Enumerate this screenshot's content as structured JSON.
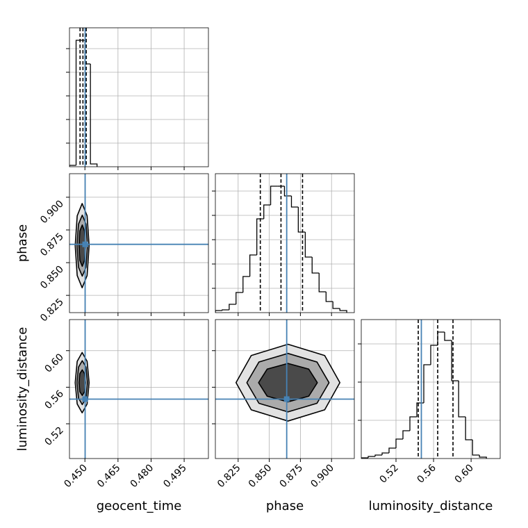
{
  "chart_data": [
    {
      "type": "histogram",
      "color": "#000000",
      "truth_color": "#4682b4",
      "grid": true,
      "xlim": [
        0.443,
        0.506
      ],
      "xticks": [
        0.45,
        0.465,
        0.48,
        0.495
      ],
      "xticklabels": false,
      "ylim": [
        0,
        100
      ],
      "yticks": [
        17,
        34,
        51,
        68,
        85
      ],
      "yticklabels": false,
      "bins": [
        0.443,
        0.446,
        0.45,
        0.4525,
        0.4555
      ],
      "counts": [
        1,
        91,
        74,
        2
      ],
      "quantiles": [
        0.4478,
        0.4491,
        0.4506
      ],
      "truth": 0.4501
    },
    {
      "type": "contour",
      "color": "#000000",
      "truth_color": "#4682b4",
      "grid": true,
      "fills": [
        "#e2e2e2",
        "#ababab",
        "#4a4a4a"
      ],
      "ylabel": "phase",
      "xlim": [
        0.443,
        0.506
      ],
      "xticks": [
        0.45,
        0.465,
        0.48,
        0.495
      ],
      "xticklabels": false,
      "ylim": [
        0.8118,
        0.918
      ],
      "yticks": [
        {
          "value": 0.825,
          "label": "0.825"
        },
        {
          "value": 0.85,
          "label": "0.850"
        },
        {
          "value": 0.875,
          "label": "0.875"
        },
        {
          "value": 0.9,
          "label": "0.900"
        }
      ],
      "yticklabels": true,
      "contours": [
        {
          "x": [
            0.4519,
            0.451,
            0.44875,
            0.4465,
            0.4456,
            0.4465,
            0.44875,
            0.451
          ],
          "y": [
            0.863,
            0.8858,
            0.8952,
            0.8858,
            0.863,
            0.8402,
            0.8308,
            0.8402
          ]
        },
        {
          "x": [
            0.4512,
            0.4505,
            0.4488,
            0.4471,
            0.4464,
            0.4471,
            0.4488,
            0.4505
          ],
          "y": [
            0.863,
            0.8795,
            0.8863,
            0.8795,
            0.863,
            0.8465,
            0.8397,
            0.8465
          ]
        },
        {
          "x": [
            0.4503,
            0.4498,
            0.4488,
            0.4477,
            0.4473,
            0.4477,
            0.4488,
            0.4498
          ],
          "y": [
            0.863,
            0.8742,
            0.8788,
            0.8742,
            0.863,
            0.8518,
            0.8472,
            0.8518
          ]
        }
      ],
      "truths": [
        0.4501,
        0.864
      ]
    },
    {
      "type": "histogram",
      "color": "#000000",
      "truth_color": "#4682b4",
      "grid": true,
      "xlim": [
        0.8067,
        0.9183
      ],
      "xticks": [
        0.825,
        0.85,
        0.875,
        0.9
      ],
      "xticklabels": false,
      "ylim": [
        0,
        100
      ],
      "yticks": [
        17.5,
        35,
        52.5,
        70,
        87.5
      ],
      "yticklabels": false,
      "bins": [
        0.8067,
        0.8122,
        0.8178,
        0.8233,
        0.8289,
        0.8344,
        0.84,
        0.8456,
        0.8511,
        0.8567,
        0.8622,
        0.8678,
        0.8733,
        0.8789,
        0.8844,
        0.89,
        0.8956,
        0.9011,
        0.9067,
        0.9122
      ],
      "counts": [
        1.5,
        2,
        6,
        14.5,
        26,
        41.5,
        67.5,
        77.5,
        91,
        91,
        84,
        76,
        58,
        40,
        28.5,
        15,
        8,
        3,
        1.5
      ],
      "quantiles": [
        0.8428,
        0.8594,
        0.8767
      ],
      "truth": 0.864
    },
    {
      "type": "contour",
      "color": "#000000",
      "truth_color": "#4682b4",
      "grid": true,
      "fills": [
        "#e2e2e2",
        "#ababab",
        "#4a4a4a"
      ],
      "xlabel": "geocent_time",
      "ylabel": "luminosity_distance",
      "xlim": [
        0.443,
        0.506
      ],
      "xticks": [
        {
          "value": 0.45,
          "label": "0.450"
        },
        0.465,
        {
          "value": 0.48,
          "label": "0.480"
        },
        0.495
      ],
      "xticklabels": true,
      "ylim": [
        0.482,
        0.634
      ],
      "yticks": [
        0.52,
        0.56,
        {
          "value": 0.6,
          "label": "0.60"
        }
      ],
      "yticklabels": true,
      "contours": [
        {
          "x": [
            0.4519,
            0.451,
            0.44875,
            0.4465,
            0.4456,
            0.4465,
            0.44875,
            0.451
          ],
          "y": [
            0.565,
            0.5883,
            0.598,
            0.5883,
            0.565,
            0.5417,
            0.532,
            0.5417
          ]
        },
        {
          "x": [
            0.4512,
            0.4505,
            0.4488,
            0.4471,
            0.4464,
            0.4471,
            0.4488,
            0.4505
          ],
          "y": [
            0.565,
            0.582,
            0.589,
            0.582,
            0.565,
            0.548,
            0.541,
            0.548
          ]
        },
        {
          "x": [
            0.4503,
            0.4498,
            0.4488,
            0.4477,
            0.4473,
            0.4477,
            0.4488,
            0.4498
          ],
          "y": [
            0.565,
            0.5749,
            0.579,
            0.5749,
            0.565,
            0.5551,
            0.551,
            0.5551
          ]
        }
      ],
      "truths": [
        0.4501,
        0.547
      ]
    },
    {
      "type": "contour",
      "color": "#000000",
      "truth_color": "#4682b4",
      "grid": true,
      "fills": [
        "#e2e2e2",
        "#ababab",
        "#4a4a4a"
      ],
      "xlabel": "phase",
      "xlim": [
        0.8067,
        0.9183
      ],
      "xticks": [
        0.825,
        {
          "value": 0.85,
          "label": "0.850"
        },
        0.875,
        {
          "value": 0.9,
          "label": "0.900"
        }
      ],
      "xticklabels": true,
      "ylim": [
        0.482,
        0.634
      ],
      "yticks": [
        0.52,
        0.56,
        0.6
      ],
      "yticklabels": false,
      "contours": [
        {
          "x": [
            0.9067,
            0.8945,
            0.865,
            0.8355,
            0.8233,
            0.8355,
            0.865,
            0.8945
          ],
          "y": [
            0.565,
            0.5947,
            0.607,
            0.5947,
            0.565,
            0.5353,
            0.523,
            0.5353
          ]
        },
        {
          "x": [
            0.898,
            0.8883,
            0.865,
            0.8417,
            0.832,
            0.8417,
            0.865,
            0.8883
          ],
          "y": [
            0.565,
            0.5876,
            0.597,
            0.5876,
            0.565,
            0.5424,
            0.533,
            0.5424
          ]
        },
        {
          "x": [
            0.8886,
            0.8817,
            0.865,
            0.8483,
            0.8414,
            0.8483,
            0.865,
            0.8817
          ],
          "y": [
            0.565,
            0.5798,
            0.586,
            0.5798,
            0.565,
            0.5502,
            0.544,
            0.5502
          ]
        }
      ],
      "truths": [
        0.864,
        0.547
      ]
    },
    {
      "type": "histogram",
      "color": "#000000",
      "truth_color": "#4682b4",
      "grid": true,
      "xlabel": "luminosity_distance",
      "xlim": [
        0.483,
        0.631
      ],
      "xticks": [
        0.52,
        0.56,
        {
          "value": 0.6,
          "label": "0.60"
        }
      ],
      "xticklabels": true,
      "ylim": [
        0,
        100
      ],
      "yticks": [
        27.5,
        55,
        82.5
      ],
      "yticklabels": false,
      "bins": [
        0.483,
        0.4904,
        0.4978,
        0.5052,
        0.5126,
        0.52,
        0.5274,
        0.5348,
        0.5422,
        0.5496,
        0.557,
        0.5644,
        0.5718,
        0.5793,
        0.5867,
        0.5941,
        0.6015,
        0.6089,
        0.6163
      ],
      "counts": [
        0.5,
        1.5,
        2.5,
        4,
        7.5,
        14,
        20,
        30,
        40,
        67.5,
        81.5,
        91,
        85,
        56,
        30,
        13.5,
        2.5,
        1
      ],
      "quantiles": [
        0.5437,
        0.5644,
        0.5807
      ],
      "truth": 0.547
    }
  ]
}
